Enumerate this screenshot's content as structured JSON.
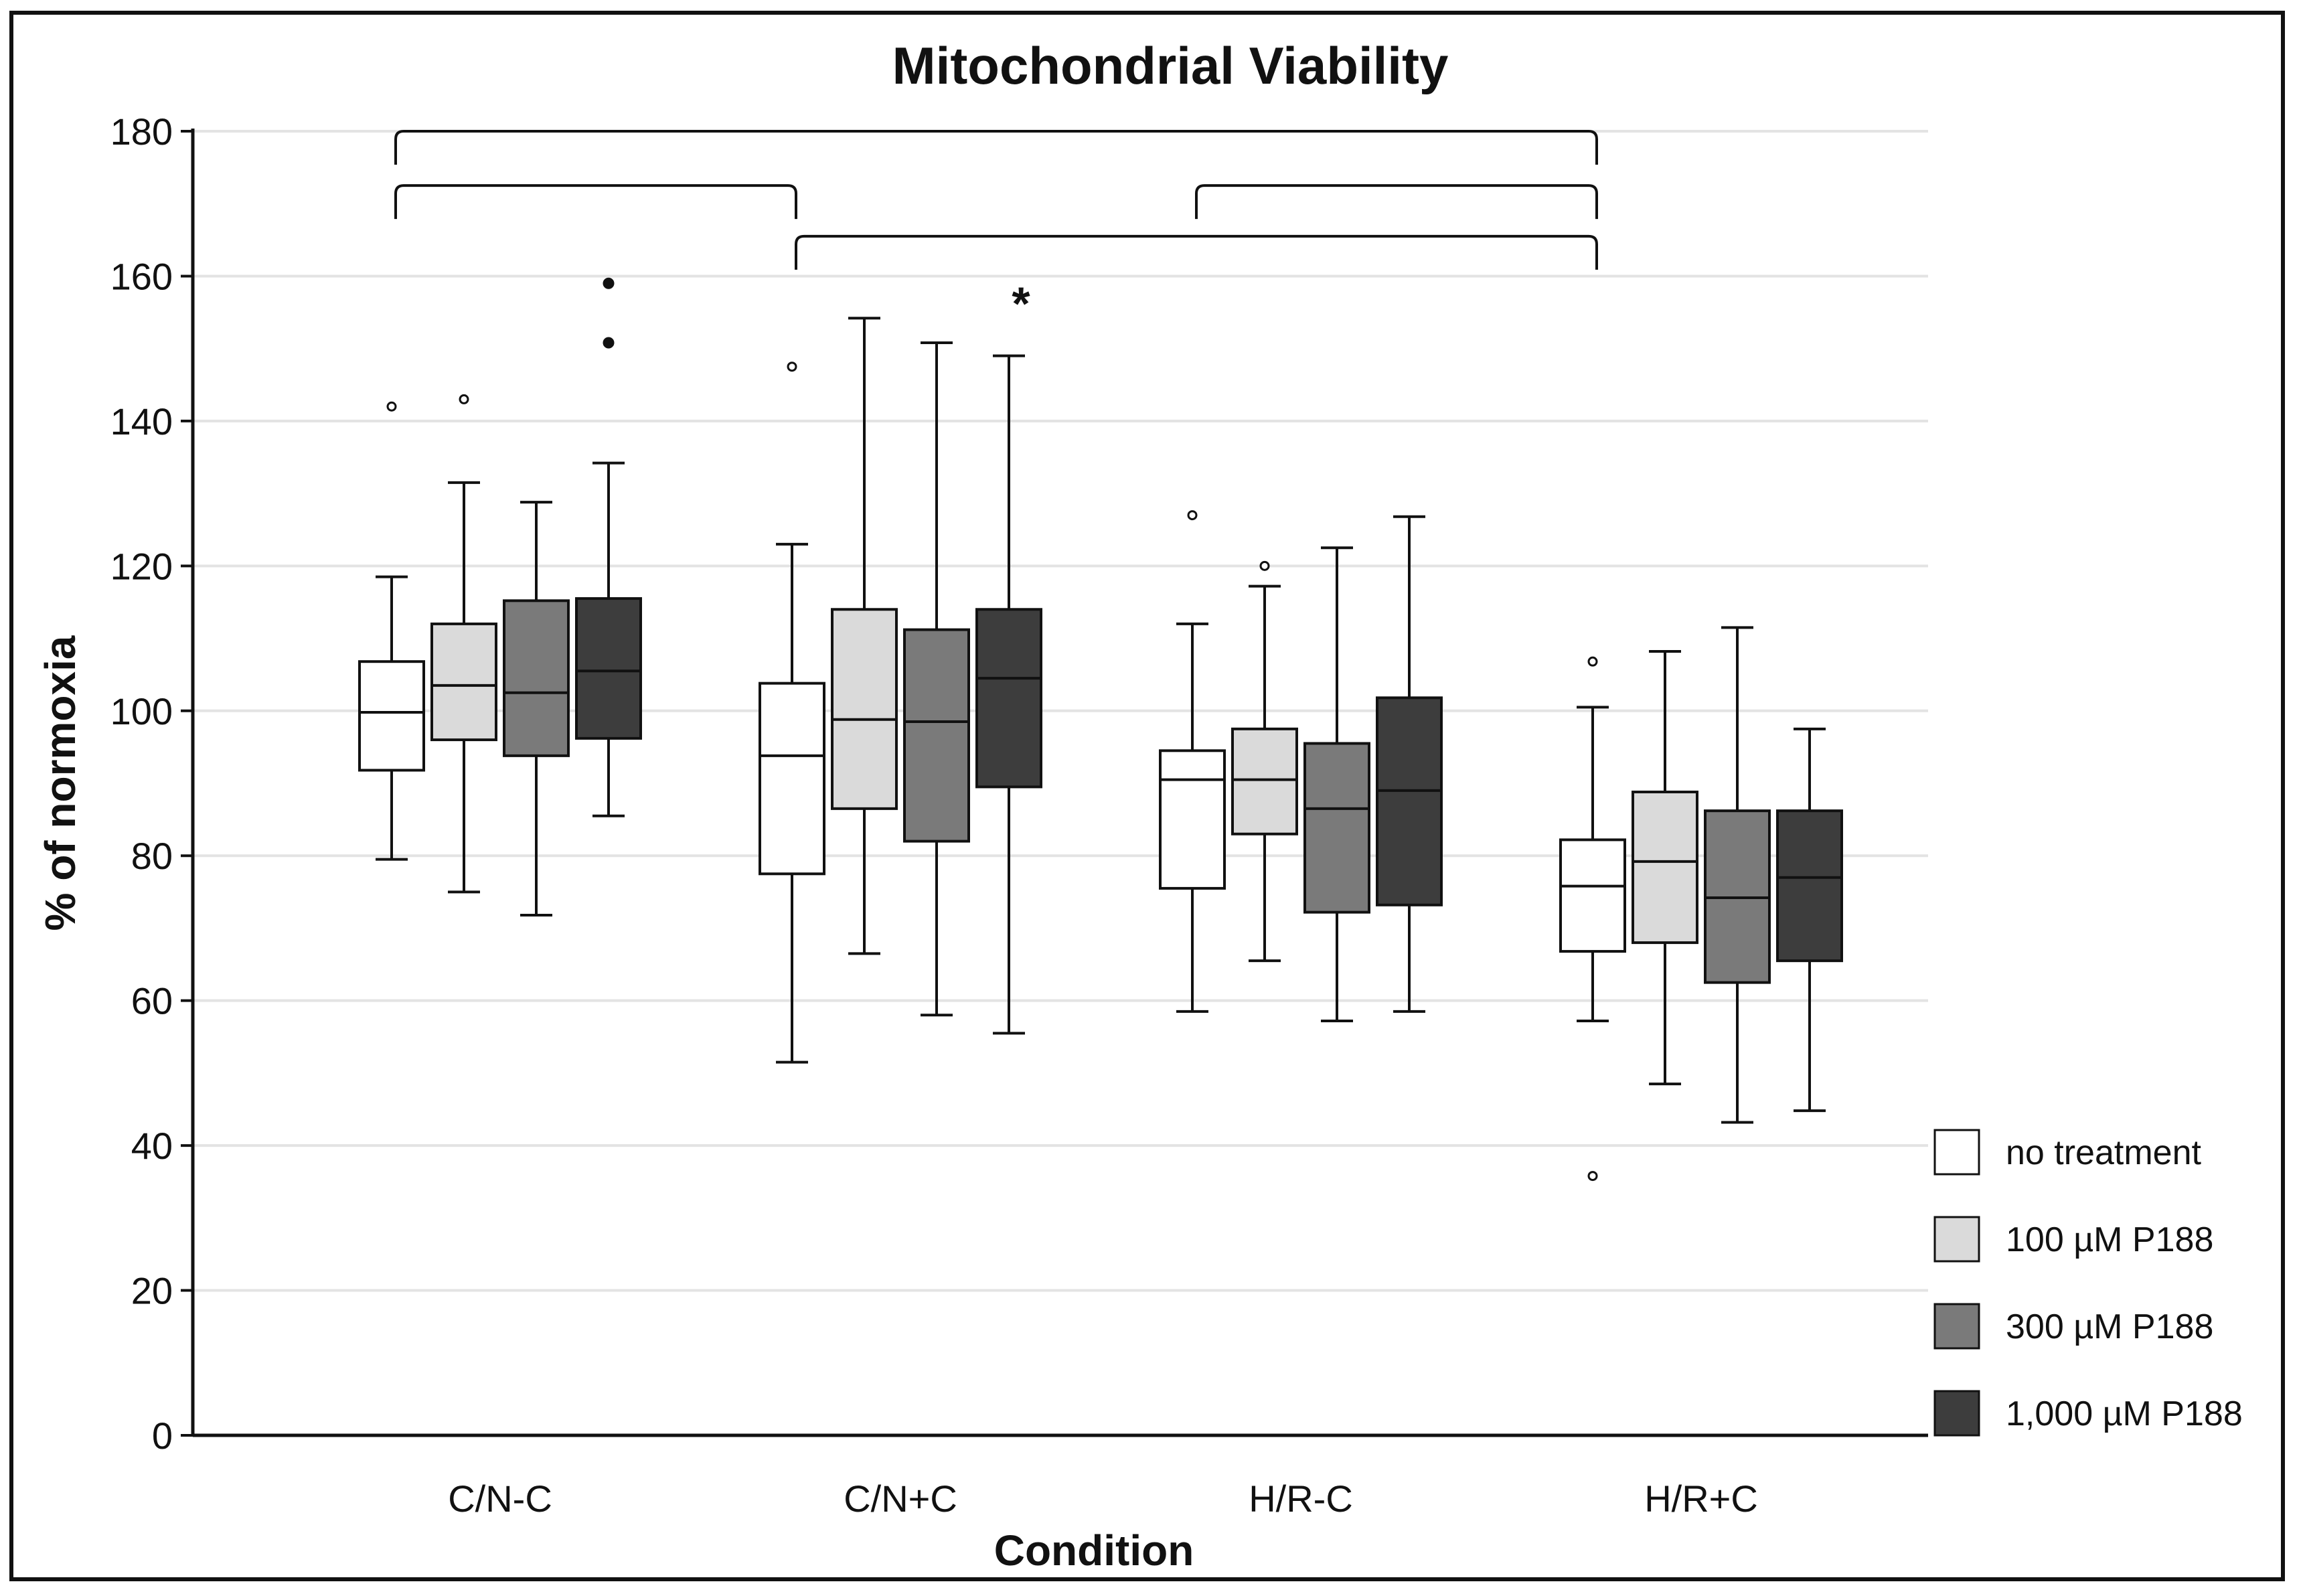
{
  "chart_data": {
    "type": "boxplot",
    "title": "Mitochondrial Viability",
    "xlabel": "Condition",
    "ylabel": "% of normoxia",
    "ylim": [
      0,
      180
    ],
    "yticks": [
      0,
      20,
      40,
      60,
      80,
      100,
      120,
      140,
      160,
      180
    ],
    "grid": true,
    "legend_position": "bottom-right",
    "categories": [
      "C/N-C",
      "C/N+C",
      "H/R-C",
      "H/R+C"
    ],
    "series": [
      {
        "name": "no treatment",
        "color": "#ffffff",
        "boxes": [
          {
            "min": 79.5,
            "q1": 91.8,
            "median": 99.8,
            "q3": 106.8,
            "max": 118.5,
            "outliers": [
              142
            ]
          },
          {
            "min": 51.5,
            "q1": 77.5,
            "median": 93.8,
            "q3": 103.8,
            "max": 123,
            "outliers": [
              147.5
            ]
          },
          {
            "min": 58.5,
            "q1": 75.5,
            "median": 90.5,
            "q3": 94.5,
            "max": 112,
            "outliers": [
              127
            ]
          },
          {
            "min": 57.2,
            "q1": 66.8,
            "median": 75.8,
            "q3": 82.2,
            "max": 100.5,
            "outliers": [
              106.8,
              35.8
            ]
          }
        ]
      },
      {
        "name": "100 µM P188",
        "color": "#dadada",
        "boxes": [
          {
            "min": 75,
            "q1": 96,
            "median": 103.5,
            "q3": 112,
            "max": 131.5,
            "outliers": [
              143
            ]
          },
          {
            "min": 66.5,
            "q1": 86.5,
            "median": 98.8,
            "q3": 114,
            "max": 154.2,
            "outliers": []
          },
          {
            "min": 65.5,
            "q1": 83,
            "median": 90.5,
            "q3": 97.5,
            "max": 117.2,
            "outliers": [
              120
            ]
          },
          {
            "min": 48.5,
            "q1": 68,
            "median": 79.2,
            "q3": 88.8,
            "max": 108.2,
            "outliers": []
          }
        ]
      },
      {
        "name": "300 µM P188",
        "color": "#7a7a7a",
        "boxes": [
          {
            "min": 71.8,
            "q1": 93.8,
            "median": 102.5,
            "q3": 115.2,
            "max": 128.8,
            "outliers": []
          },
          {
            "min": 58,
            "q1": 82,
            "median": 98.5,
            "q3": 111.2,
            "max": 150.8,
            "outliers": []
          },
          {
            "min": 57.2,
            "q1": 72.2,
            "median": 86.5,
            "q3": 95.5,
            "max": 122.5,
            "outliers": []
          },
          {
            "min": 43.2,
            "q1": 62.5,
            "median": 74.2,
            "q3": 86.2,
            "max": 111.5,
            "outliers": []
          }
        ]
      },
      {
        "name": "1,000 µM P188",
        "color": "#3d3d3d",
        "boxes": [
          {
            "min": 85.5,
            "q1": 96.2,
            "median": 105.5,
            "q3": 115.5,
            "max": 134.2,
            "outliers": [
              150.8,
              159
            ]
          },
          {
            "min": 55.5,
            "q1": 89.5,
            "median": 104.5,
            "q3": 114,
            "max": 149,
            "outliers": []
          },
          {
            "min": 58.5,
            "q1": 73.2,
            "median": 89,
            "q3": 101.8,
            "max": 126.8,
            "outliers": []
          },
          {
            "min": 44.8,
            "q1": 65.5,
            "median": 77,
            "q3": 86.2,
            "max": 97.5,
            "outliers": []
          }
        ]
      }
    ],
    "annotations": [
      {
        "text": "*",
        "category": "C/N+C",
        "series": "1,000 µM P188",
        "y": 157.5
      }
    ],
    "brackets": [
      {
        "from": "C/N-C",
        "to": "H/R+C",
        "y": 180
      },
      {
        "from": "C/N-C",
        "to": "C/N+C",
        "y": 172.5
      },
      {
        "from": "H/R-C",
        "to": "H/R+C",
        "y": 172.5
      },
      {
        "from": "C/N+C",
        "to": "H/R+C",
        "y": 165.5
      }
    ]
  }
}
